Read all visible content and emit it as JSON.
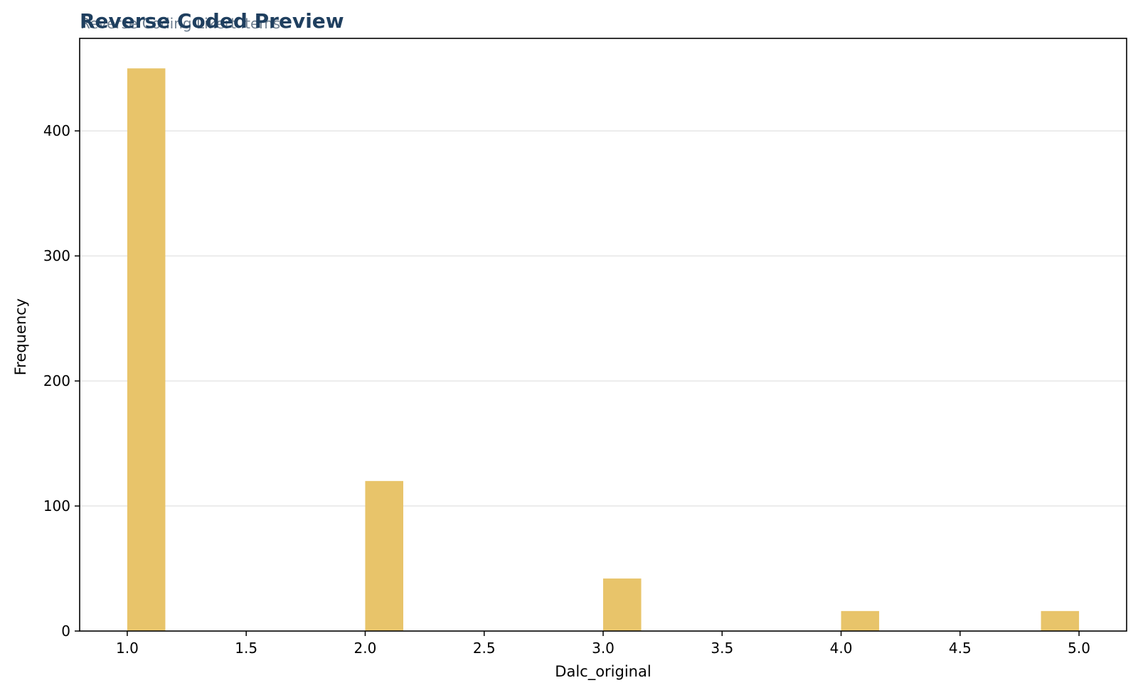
{
  "chart_data": {
    "type": "bar",
    "title": "Reverse Coded Preview",
    "subtitle": "Reverse Coding Likert Items",
    "xlabel": "Dalc_original",
    "ylabel": "Frequency",
    "xlim": [
      0.8,
      5.2
    ],
    "ylim": [
      0,
      474
    ],
    "x_ticks": [
      "1.0",
      "1.5",
      "2.0",
      "2.5",
      "3.0",
      "3.5",
      "4.0",
      "4.5",
      "5.0"
    ],
    "y_ticks": [
      "0",
      "100",
      "200",
      "300",
      "400"
    ],
    "grid": "y",
    "bar_color": "#e8c46a",
    "bars": [
      {
        "x0": 1.0,
        "x1": 1.16,
        "value": 450
      },
      {
        "x0": 2.0,
        "x1": 2.16,
        "value": 120
      },
      {
        "x0": 3.0,
        "x1": 3.16,
        "value": 42
      },
      {
        "x0": 4.0,
        "x1": 4.16,
        "value": 16
      },
      {
        "x0": 4.84,
        "x1": 5.0,
        "value": 16
      }
    ]
  }
}
